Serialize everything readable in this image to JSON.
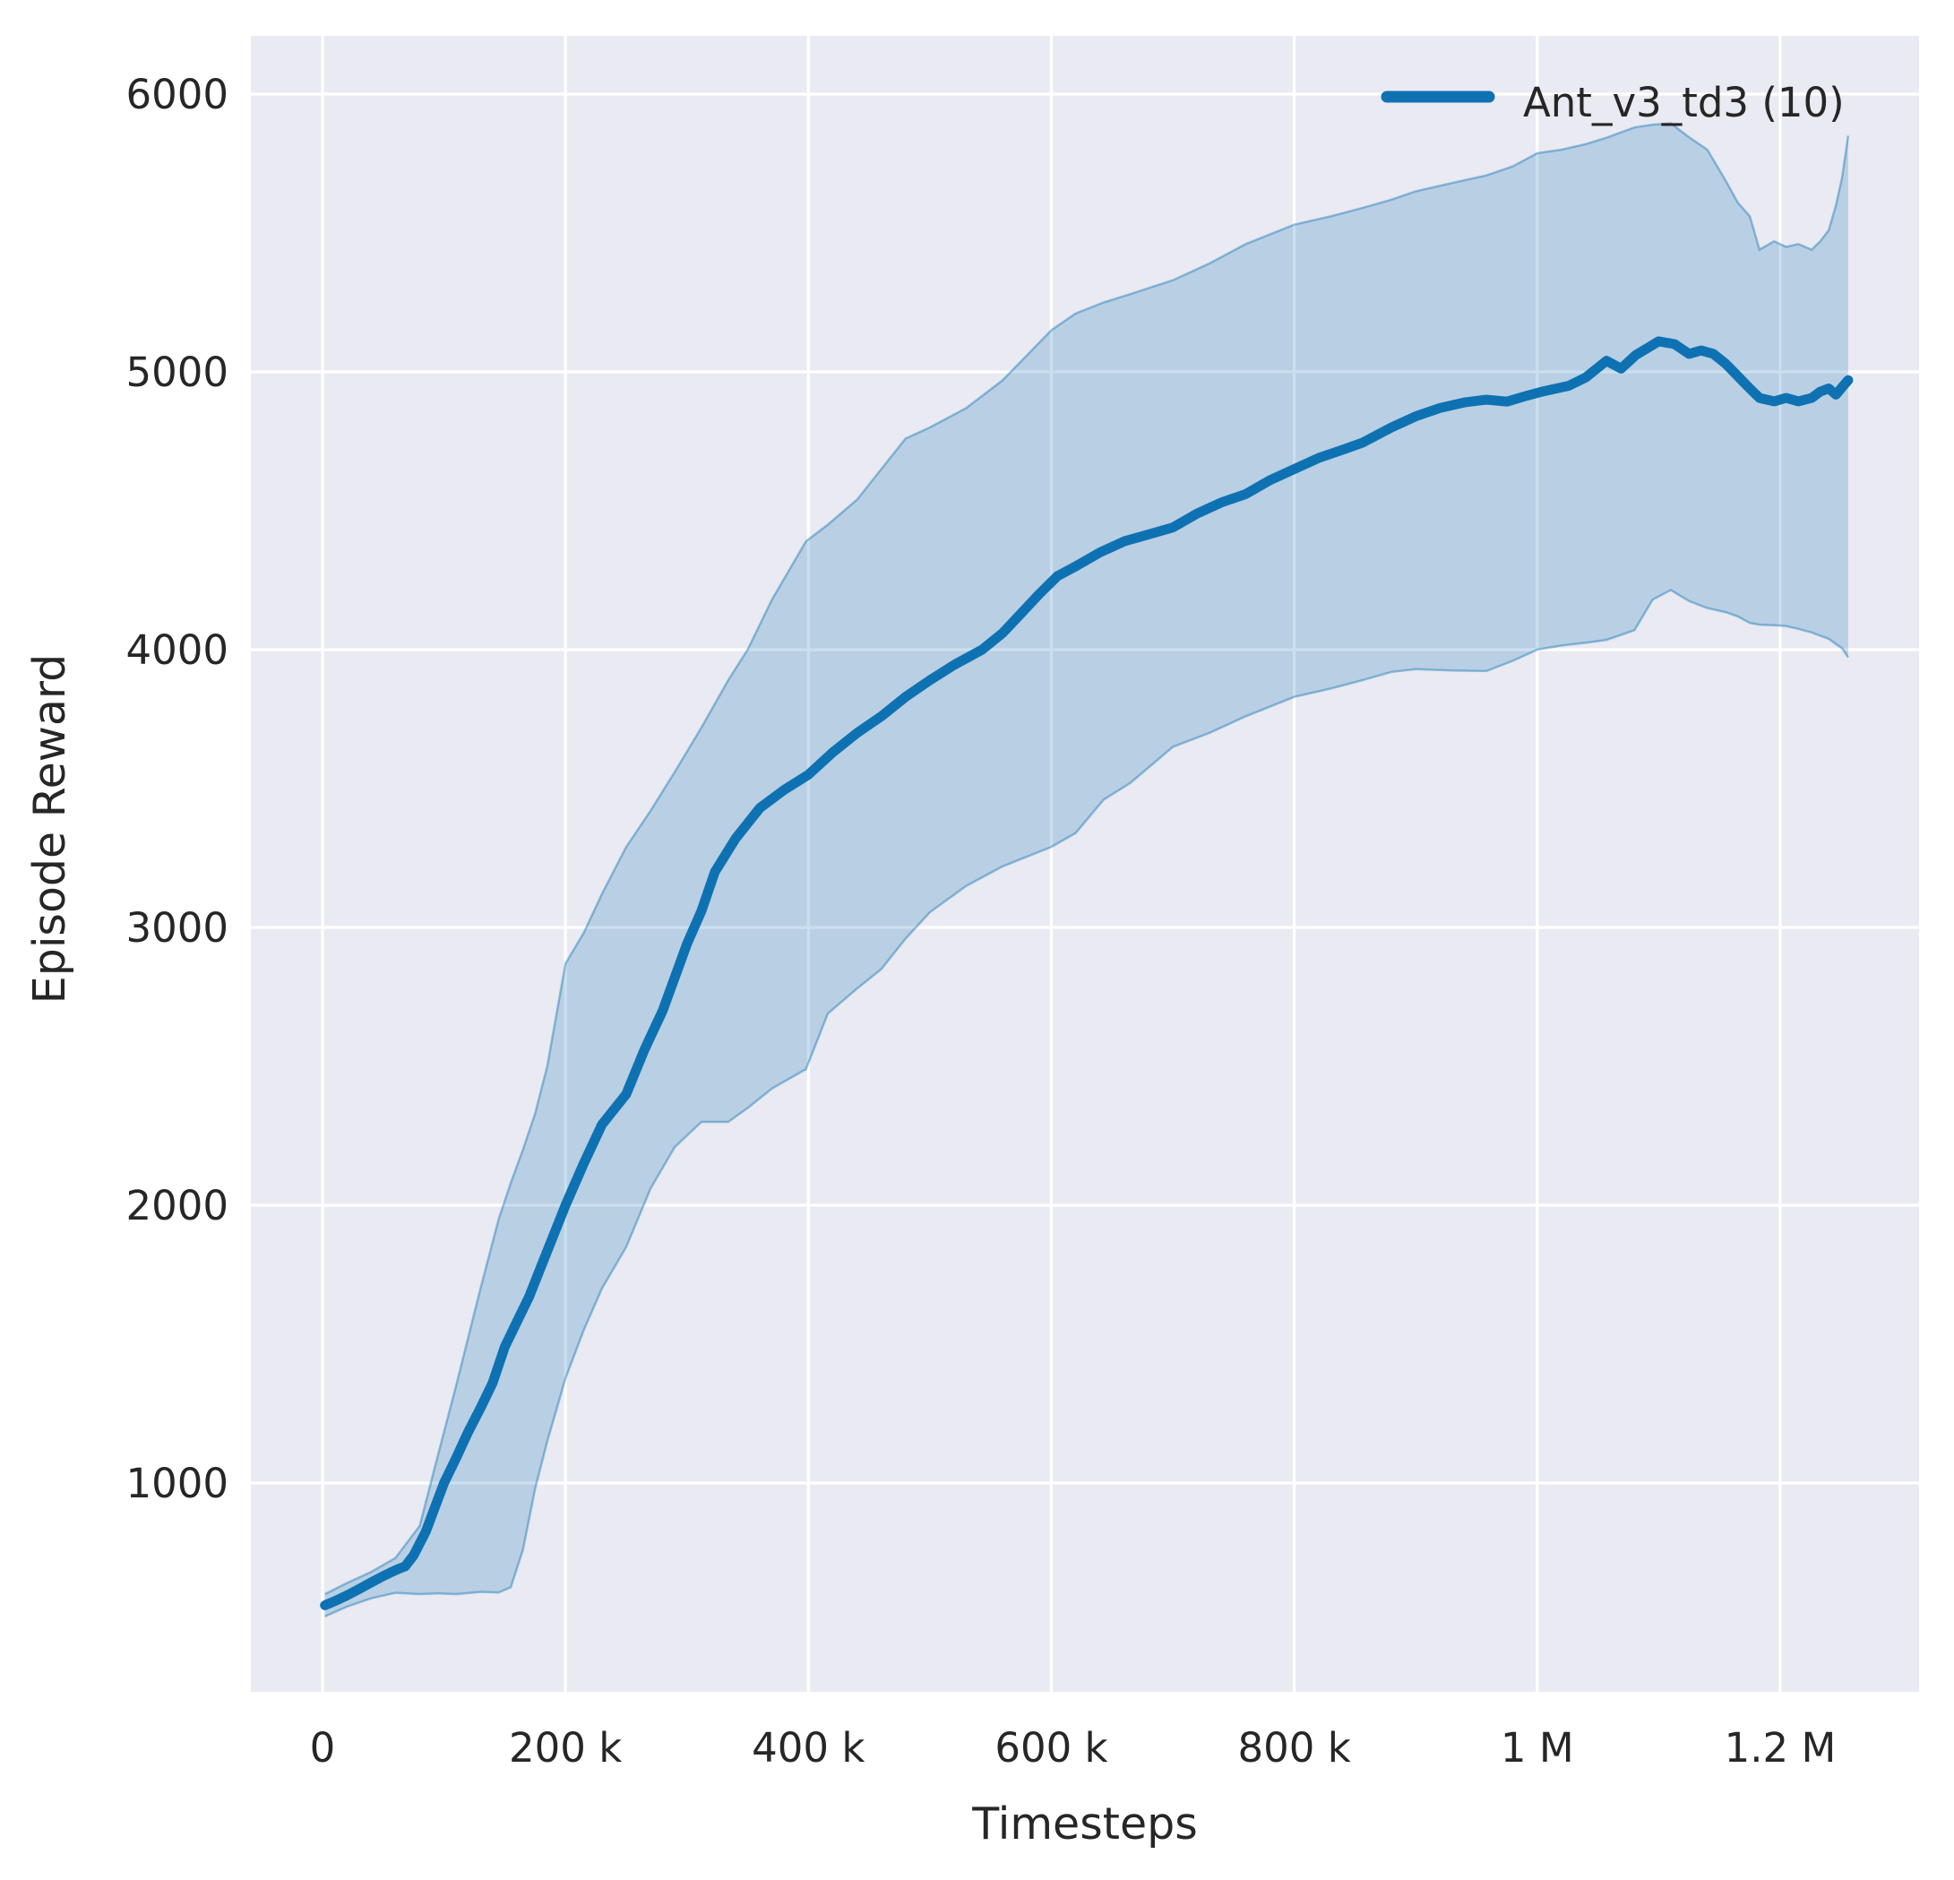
{
  "figure": {
    "background": "#ffffff",
    "plot_background": "#eaeaf2",
    "grid_color": "#ffffff",
    "text_color": "#262626"
  },
  "chart_data": {
    "type": "line",
    "title": "",
    "xlabel": "Timesteps",
    "ylabel": "Episode Reward",
    "xlim": [
      -59000,
      1315000
    ],
    "ylim": [
      250,
      6210
    ],
    "grid": true,
    "legend": {
      "position": "upper right",
      "entries": [
        {
          "label": "Ant_v3_td3 (10)",
          "color": "#0e72b2",
          "marker": "line"
        }
      ]
    },
    "x_ticks": [
      {
        "value": 0,
        "label": "0"
      },
      {
        "value": 200000,
        "label": "200 k"
      },
      {
        "value": 400000,
        "label": "400 k"
      },
      {
        "value": 600000,
        "label": "600 k"
      },
      {
        "value": 800000,
        "label": "800 k"
      },
      {
        "value": 1000000,
        "label": "1 M"
      },
      {
        "value": 1200000,
        "label": "1.2 M"
      }
    ],
    "y_ticks": [
      {
        "value": 1000,
        "label": "1000"
      },
      {
        "value": 2000,
        "label": "2000"
      },
      {
        "value": 3000,
        "label": "3000"
      },
      {
        "value": 4000,
        "label": "4000"
      },
      {
        "value": 5000,
        "label": "5000"
      },
      {
        "value": 6000,
        "label": "6000"
      }
    ],
    "series": [
      {
        "name": "Ant_v3_td3 (10)",
        "role": "mean",
        "color": "#0e72b2",
        "x_thousands": [
          2,
          10,
          20,
          30,
          40,
          50,
          57,
          62,
          68,
          75,
          85,
          100,
          110,
          120,
          130,
          140,
          150,
          160,
          170,
          180,
          190,
          200,
          215,
          230,
          250,
          265,
          280,
          300,
          312,
          323,
          340,
          360,
          380,
          400,
          420,
          440,
          460,
          480,
          500,
          520,
          543,
          560,
          575,
          590,
          605,
          620,
          640,
          660,
          680,
          700,
          720,
          740,
          760,
          780,
          800,
          820,
          840,
          856,
          880,
          900,
          920,
          940,
          958,
          975,
          992,
          1005,
          1026,
          1040,
          1057,
          1069,
          1081,
          1100,
          1113,
          1125,
          1135,
          1145,
          1155,
          1165,
          1175,
          1183,
          1195,
          1205,
          1215,
          1226,
          1233,
          1240,
          1246,
          1251,
          1256
        ],
        "y": [
          560,
          575,
          595,
          618,
          642,
          665,
          680,
          690,
          700,
          740,
          825,
          1000,
          1090,
          1185,
          1270,
          1360,
          1490,
          1580,
          1670,
          1780,
          1890,
          2000,
          2150,
          2290,
          2400,
          2560,
          2700,
          2940,
          3060,
          3200,
          3320,
          3430,
          3495,
          3550,
          3630,
          3700,
          3760,
          3830,
          3890,
          3945,
          4000,
          4060,
          4130,
          4200,
          4265,
          4300,
          4350,
          4390,
          4415,
          4440,
          4490,
          4530,
          4560,
          4610,
          4650,
          4690,
          4720,
          4745,
          4800,
          4840,
          4870,
          4890,
          4900,
          4893,
          4915,
          4930,
          4950,
          4980,
          5040,
          5012,
          5060,
          5110,
          5100,
          5065,
          5077,
          5065,
          5030,
          4985,
          4940,
          4906,
          4894,
          4906,
          4894,
          4906,
          4929,
          4940,
          4918,
          4945,
          4970
        ]
      }
    ],
    "band": {
      "name": "std-deviation-band",
      "color": "#0e72b2",
      "fill_opacity": 0.22,
      "edge_opacity": 0.42,
      "x_thousands": [
        2,
        20,
        40,
        60,
        80,
        95,
        110,
        130,
        145,
        155,
        165,
        175,
        185,
        200,
        215,
        230,
        250,
        270,
        290,
        312,
        334,
        350,
        370,
        398,
        416,
        440,
        460,
        480,
        500,
        530,
        560,
        600,
        620,
        643,
        665,
        700,
        730,
        760,
        800,
        830,
        856,
        880,
        900,
        930,
        958,
        980,
        1000,
        1020,
        1040,
        1057,
        1080,
        1095,
        1110,
        1125,
        1140,
        1155,
        1165,
        1175,
        1183,
        1195,
        1205,
        1215,
        1226,
        1233,
        1240,
        1246,
        1251,
        1256
      ],
      "upper": [
        600,
        640,
        680,
        730,
        846,
        1100,
        1350,
        1700,
        1950,
        2080,
        2200,
        2330,
        2500,
        2870,
        2980,
        3120,
        3290,
        3420,
        3560,
        3720,
        3890,
        4000,
        4180,
        4390,
        4450,
        4540,
        4650,
        4760,
        4800,
        4870,
        4970,
        5150,
        5210,
        5250,
        5280,
        5330,
        5390,
        5460,
        5530,
        5560,
        5590,
        5620,
        5650,
        5680,
        5707,
        5740,
        5787,
        5800,
        5820,
        5843,
        5880,
        5890,
        5895,
        5845,
        5800,
        5690,
        5610,
        5560,
        5440,
        5470,
        5450,
        5460,
        5440,
        5470,
        5510,
        5600,
        5700,
        5850
      ],
      "lower": [
        520,
        555,
        585,
        605,
        600,
        603,
        600,
        608,
        606,
        625,
        760,
        980,
        1150,
        1377,
        1550,
        1700,
        1850,
        2060,
        2210,
        2300,
        2300,
        2350,
        2420,
        2490,
        2690,
        2780,
        2850,
        2960,
        3055,
        3150,
        3220,
        3290,
        3340,
        3460,
        3520,
        3650,
        3700,
        3760,
        3830,
        3860,
        3890,
        3920,
        3930,
        3925,
        3923,
        3960,
        4000,
        4015,
        4025,
        4035,
        4070,
        4180,
        4215,
        4175,
        4150,
        4135,
        4120,
        4096,
        4090,
        4088,
        4085,
        4075,
        4062,
        4050,
        4039,
        4020,
        4005,
        3972
      ]
    }
  }
}
